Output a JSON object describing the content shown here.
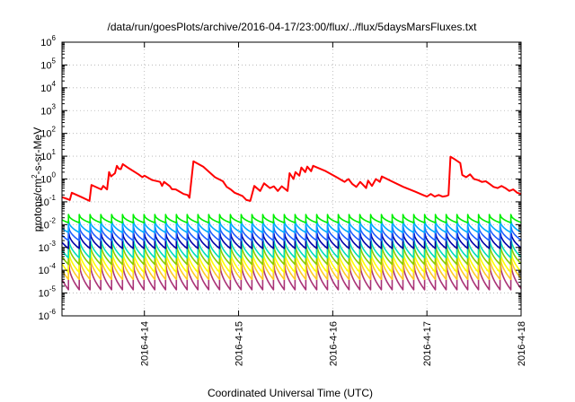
{
  "chart_data": {
    "type": "line",
    "title": "/data/run/goesPlots/archive/2016-04-17/23:00/flux/../flux/5daysMarsFluxes.txt",
    "xlabel": "Coordinated Universal Time (UTC)",
    "ylabel": {
      "prefix": "protons/cm",
      "sup": "2",
      "suffix": "-s-sr-MeV"
    },
    "yscale": "log",
    "ylim": [
      1e-06,
      1000000.0
    ],
    "xlim": [
      "2016-04-13T03:00",
      "2016-04-18T00:00"
    ],
    "grid": true,
    "yticks": [
      {
        "value": 1e-06,
        "base": "10",
        "exp": "-6"
      },
      {
        "value": 1e-05,
        "base": "10",
        "exp": "-5"
      },
      {
        "value": 0.0001,
        "base": "10",
        "exp": "-4"
      },
      {
        "value": 0.001,
        "base": "10",
        "exp": "-3"
      },
      {
        "value": 0.01,
        "base": "10",
        "exp": "-2"
      },
      {
        "value": 0.1,
        "base": "10",
        "exp": "-1"
      },
      {
        "value": 1,
        "base": "10",
        "exp": "0"
      },
      {
        "value": 10.0,
        "base": "10",
        "exp": "1"
      },
      {
        "value": 100.0,
        "base": "10",
        "exp": "2"
      },
      {
        "value": 1000.0,
        "base": "10",
        "exp": "3"
      },
      {
        "value": 10000.0,
        "base": "10",
        "exp": "4"
      },
      {
        "value": 100000.0,
        "base": "10",
        "exp": "5"
      },
      {
        "value": 1000000.0,
        "base": "10",
        "exp": "6"
      }
    ],
    "xticks": [
      {
        "value": "2016-04-14T00:00",
        "label": "2016-4-14"
      },
      {
        "value": "2016-04-15T00:00",
        "label": "2016-4-15"
      },
      {
        "value": "2016-04-16T00:00",
        "label": "2016-4-16"
      },
      {
        "value": "2016-04-17T00:00",
        "label": "2016-4-17"
      },
      {
        "value": "2016-04-18T00:00",
        "label": "2016-4-18"
      }
    ],
    "series": [
      {
        "color": "#ff0000",
        "points": [
          [
            "2016-04-13T03:00",
            0.16
          ],
          [
            "2016-04-13T04:30",
            0.13
          ],
          [
            "2016-04-13T05:00",
            0.12
          ],
          [
            "2016-04-13T05:30",
            0.25
          ],
          [
            "2016-04-13T08:00",
            0.16
          ],
          [
            "2016-04-13T10:00",
            0.11
          ],
          [
            "2016-04-13T10:30",
            0.55
          ],
          [
            "2016-04-13T13:00",
            0.35
          ],
          [
            "2016-04-13T13:30",
            0.5
          ],
          [
            "2016-04-13T14:30",
            0.35
          ],
          [
            "2016-04-13T15:00",
            2.0
          ],
          [
            "2016-04-13T15:30",
            1.3
          ],
          [
            "2016-04-13T16:30",
            1.8
          ],
          [
            "2016-04-13T17:00",
            3.8
          ],
          [
            "2016-04-13T17:30",
            2.8
          ],
          [
            "2016-04-13T18:00",
            2.7
          ],
          [
            "2016-04-13T18:30",
            4.5
          ],
          [
            "2016-04-13T20:00",
            3.0
          ],
          [
            "2016-04-13T22:30",
            1.6
          ],
          [
            "2016-04-13T23:30",
            1.2
          ],
          [
            "2016-04-14T00:00",
            1.4
          ],
          [
            "2016-04-14T02:00",
            0.9
          ],
          [
            "2016-04-14T04:00",
            0.75
          ],
          [
            "2016-04-14T04:30",
            0.5
          ],
          [
            "2016-04-14T05:00",
            0.75
          ],
          [
            "2016-04-14T06:30",
            0.48
          ],
          [
            "2016-04-14T07:00",
            0.36
          ],
          [
            "2016-04-14T08:00",
            0.35
          ],
          [
            "2016-04-14T09:00",
            0.28
          ],
          [
            "2016-04-14T10:00",
            0.22
          ],
          [
            "2016-04-14T11:00",
            0.2
          ],
          [
            "2016-04-14T11:30",
            0.15
          ],
          [
            "2016-04-14T12:30",
            6.0
          ],
          [
            "2016-04-14T15:00",
            3.5
          ],
          [
            "2016-04-14T18:00",
            1.2
          ],
          [
            "2016-04-14T20:00",
            0.8
          ],
          [
            "2016-04-14T21:00",
            0.45
          ],
          [
            "2016-04-14T22:00",
            0.35
          ],
          [
            "2016-04-14T23:00",
            0.25
          ],
          [
            "2016-04-15T01:00",
            0.18
          ],
          [
            "2016-04-15T02:00",
            0.12
          ],
          [
            "2016-04-15T03:00",
            0.11
          ],
          [
            "2016-04-15T04:00",
            0.5
          ],
          [
            "2016-04-15T05:30",
            0.3
          ],
          [
            "2016-04-15T06:30",
            0.65
          ],
          [
            "2016-04-15T08:00",
            0.4
          ],
          [
            "2016-04-15T09:00",
            0.48
          ],
          [
            "2016-04-15T10:00",
            0.3
          ],
          [
            "2016-04-15T11:00",
            0.48
          ],
          [
            "2016-04-15T12:30",
            0.3
          ],
          [
            "2016-04-15T13:00",
            1.8
          ],
          [
            "2016-04-15T14:00",
            1.0
          ],
          [
            "2016-04-15T14:30",
            2.0
          ],
          [
            "2016-04-15T15:30",
            1.4
          ],
          [
            "2016-04-15T16:00",
            3.2
          ],
          [
            "2016-04-15T17:00",
            2.0
          ],
          [
            "2016-04-15T17:30",
            3.5
          ],
          [
            "2016-04-15T18:30",
            2.2
          ],
          [
            "2016-04-15T19:00",
            3.8
          ],
          [
            "2016-04-15T22:00",
            2.3
          ],
          [
            "2016-04-16T01:00",
            1.2
          ],
          [
            "2016-04-16T03:00",
            0.75
          ],
          [
            "2016-04-16T04:00",
            1.0
          ],
          [
            "2016-04-16T05:00",
            0.6
          ],
          [
            "2016-04-16T06:00",
            0.45
          ],
          [
            "2016-04-16T07:00",
            0.75
          ],
          [
            "2016-04-16T08:00",
            0.5
          ],
          [
            "2016-04-16T08:30",
            0.4
          ],
          [
            "2016-04-16T09:00",
            0.85
          ],
          [
            "2016-04-16T10:00",
            0.5
          ],
          [
            "2016-04-16T11:00",
            1.0
          ],
          [
            "2016-04-16T12:00",
            0.75
          ],
          [
            "2016-04-16T12:30",
            1.3
          ],
          [
            "2016-04-16T15:00",
            0.8
          ],
          [
            "2016-04-16T18:00",
            0.45
          ],
          [
            "2016-04-16T21:00",
            0.28
          ],
          [
            "2016-04-16T23:00",
            0.2
          ],
          [
            "2016-04-17T00:00",
            0.17
          ],
          [
            "2016-04-17T01:00",
            0.22
          ],
          [
            "2016-04-17T02:00",
            0.17
          ],
          [
            "2016-04-17T03:00",
            0.2
          ],
          [
            "2016-04-17T04:00",
            0.17
          ],
          [
            "2016-04-17T05:00",
            0.18
          ],
          [
            "2016-04-17T05:30",
            0.2
          ],
          [
            "2016-04-17T06:00",
            9.5
          ],
          [
            "2016-04-17T07:00",
            7.5
          ],
          [
            "2016-04-17T08:30",
            5.0
          ],
          [
            "2016-04-17T09:00",
            1.5
          ],
          [
            "2016-04-17T10:00",
            1.2
          ],
          [
            "2016-04-17T11:00",
            1.6
          ],
          [
            "2016-04-17T12:00",
            1.0
          ],
          [
            "2016-04-17T13:00",
            0.9
          ],
          [
            "2016-04-17T14:00",
            0.75
          ],
          [
            "2016-04-17T15:00",
            0.8
          ],
          [
            "2016-04-17T16:00",
            0.6
          ],
          [
            "2016-04-17T17:00",
            0.45
          ],
          [
            "2016-04-17T18:00",
            0.4
          ],
          [
            "2016-04-17T19:00",
            0.5
          ],
          [
            "2016-04-17T20:00",
            0.4
          ],
          [
            "2016-04-17T21:00",
            0.3
          ],
          [
            "2016-04-17T22:00",
            0.35
          ],
          [
            "2016-04-17T23:00",
            0.25
          ],
          [
            "2016-04-18T00:00",
            0.22
          ]
        ]
      },
      {
        "color": "#00ee00",
        "sawtooth": {
          "peak": 0.028,
          "base": 0.012,
          "period_hours": 2.75
        }
      },
      {
        "color": "#00aaff",
        "sawtooth": {
          "peak": 0.015,
          "base": 0.0045,
          "period_hours": 2.75
        }
      },
      {
        "color": "#1e5fff",
        "sawtooth": {
          "peak": 0.009,
          "base": 0.002,
          "period_hours": 2.75
        }
      },
      {
        "color": "#0000aa",
        "sawtooth": {
          "peak": 0.005,
          "base": 0.0009,
          "period_hours": 2.75
        }
      },
      {
        "color": "#00ddbb",
        "sawtooth": {
          "peak": 0.0028,
          "base": 0.00035,
          "period_hours": 2.75
        }
      },
      {
        "color": "#88cc00",
        "sawtooth": {
          "peak": 0.0016,
          "base": 0.00018,
          "period_hours": 2.75
        }
      },
      {
        "color": "#ffff00",
        "sawtooth": {
          "peak": 0.0009,
          "base": 8e-05,
          "period_hours": 2.75
        }
      },
      {
        "color": "#ffcc22",
        "sawtooth": {
          "peak": 0.0005,
          "base": 4e-05,
          "period_hours": 2.75
        }
      },
      {
        "color": "#aa3377",
        "sawtooth": {
          "peak": 0.00025,
          "base": 1.4e-05,
          "period_hours": 2.75
        }
      }
    ]
  }
}
